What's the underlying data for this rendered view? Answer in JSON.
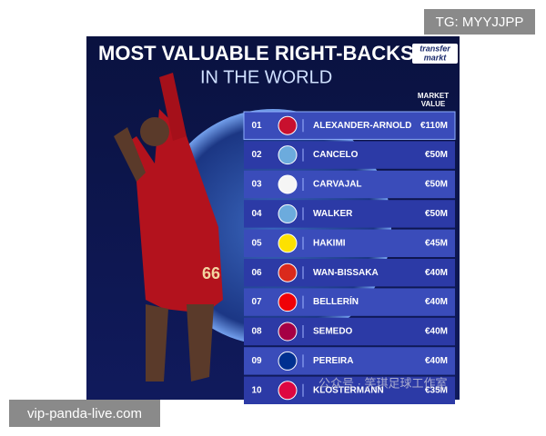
{
  "header": {
    "title": "MOST VALUABLE RIGHT-BACKS",
    "subtitle": "IN THE WORLD",
    "logo": [
      "transfer",
      "markt"
    ],
    "column_label": [
      "MARKET",
      "VALUE"
    ]
  },
  "table": {
    "rows": [
      [
        "01",
        "ALEXANDER-ARNOLD",
        "€110M"
      ],
      [
        "02",
        "CANCELO",
        "€50M"
      ],
      [
        "03",
        "CARVAJAL",
        "€50M"
      ],
      [
        "04",
        "WALKER",
        "€50M"
      ],
      [
        "05",
        "HAKIMI",
        "€45M"
      ],
      [
        "06",
        "WAN-BISSAKA",
        "€40M"
      ],
      [
        "07",
        "BELLERÍN",
        "€40M"
      ],
      [
        "08",
        "SEMEDO",
        "€40M"
      ],
      [
        "09",
        "PEREIRA",
        "€40M"
      ],
      [
        "10",
        "KLOSTERMANN",
        "€35M"
      ]
    ]
  },
  "player_number": "66",
  "watermarks": {
    "top": "TG: MYYJJPP",
    "bottom": "vip-panda-live.com",
    "overlay": "公众号 · 笑琪足球工作室"
  }
}
